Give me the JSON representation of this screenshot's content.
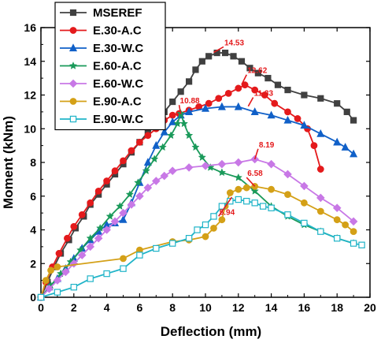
{
  "colors": {
    "axis": "#000000",
    "annotation": "#e41a1c"
  },
  "chart_data": {
    "type": "line",
    "title": "",
    "xlabel": "Deflection (mm)",
    "ylabel": "Moment (kNm)",
    "xlim": [
      0,
      20
    ],
    "ylim": [
      0,
      16
    ],
    "x_ticks": [
      "0",
      "2",
      "4",
      "6",
      "8",
      "10",
      "12",
      "14",
      "16",
      "18",
      "20"
    ],
    "y_ticks": [
      "0",
      "2",
      "4",
      "6",
      "8",
      "10",
      "12",
      "14",
      "16"
    ],
    "grid": false,
    "legend_position": "top-left",
    "series": [
      {
        "name": "MSEREF",
        "color": "#404040",
        "marker": "square",
        "points": [
          [
            0,
            0
          ],
          [
            0.4,
            0.9
          ],
          [
            0.8,
            1.8
          ],
          [
            1.2,
            2.6
          ],
          [
            1.7,
            3.4
          ],
          [
            2.1,
            4.1
          ],
          [
            2.6,
            4.8
          ],
          [
            3.0,
            5.5
          ],
          [
            3.5,
            6.1
          ],
          [
            4.0,
            6.7
          ],
          [
            4.5,
            7.3
          ],
          [
            5.0,
            7.9
          ],
          [
            5.5,
            8.6
          ],
          [
            6.0,
            9.2
          ],
          [
            6.5,
            9.8
          ],
          [
            7.0,
            10.4
          ],
          [
            7.5,
            11.0
          ],
          [
            8.0,
            11.6
          ],
          [
            8.5,
            12.2
          ],
          [
            9.0,
            12.8
          ],
          [
            9.4,
            13.5
          ],
          [
            9.8,
            14.0
          ],
          [
            10.2,
            14.3
          ],
          [
            10.7,
            14.5
          ],
          [
            11.2,
            14.5
          ],
          [
            11.7,
            14.3
          ],
          [
            12.2,
            14.0
          ],
          [
            12.7,
            13.6
          ],
          [
            13.2,
            13.3
          ],
          [
            13.8,
            13.0
          ],
          [
            14.4,
            12.6
          ],
          [
            15.0,
            12.3
          ],
          [
            16.0,
            12.0
          ],
          [
            17.0,
            11.8
          ],
          [
            18.0,
            11.5
          ],
          [
            18.6,
            11.0
          ],
          [
            19.0,
            10.5
          ]
        ]
      },
      {
        "name": "E.30-A.C",
        "color": "#e41a1c",
        "marker": "circle",
        "points": [
          [
            0,
            0
          ],
          [
            0.3,
            0.9
          ],
          [
            0.7,
            1.8
          ],
          [
            1.1,
            2.6
          ],
          [
            1.6,
            3.5
          ],
          [
            2.0,
            4.2
          ],
          [
            2.5,
            4.9
          ],
          [
            3.0,
            5.6
          ],
          [
            3.5,
            6.3
          ],
          [
            4.0,
            6.9
          ],
          [
            4.5,
            7.5
          ],
          [
            5.0,
            8.1
          ],
          [
            5.5,
            8.7
          ],
          [
            6.0,
            9.2
          ],
          [
            6.5,
            9.6
          ],
          [
            7.0,
            10.0
          ],
          [
            7.5,
            10.5
          ],
          [
            8.0,
            10.8
          ],
          [
            8.4,
            10.9
          ],
          [
            9.0,
            11.1
          ],
          [
            9.6,
            11.3
          ],
          [
            10.2,
            11.5
          ],
          [
            10.8,
            11.8
          ],
          [
            11.4,
            12.1
          ],
          [
            12.0,
            12.4
          ],
          [
            12.4,
            12.6
          ],
          [
            13.0,
            12.3
          ],
          [
            13.6,
            12.0
          ],
          [
            14.2,
            11.5
          ],
          [
            15.0,
            11.0
          ],
          [
            15.6,
            10.6
          ],
          [
            16.2,
            10.0
          ],
          [
            16.6,
            9.0
          ],
          [
            17.0,
            7.6
          ]
        ]
      },
      {
        "name": "E.30-W.C",
        "color": "#1060c8",
        "marker": "triangle",
        "points": [
          [
            0,
            0
          ],
          [
            0.5,
            0.6
          ],
          [
            1.0,
            1.1
          ],
          [
            1.5,
            1.7
          ],
          [
            2.0,
            2.3
          ],
          [
            2.5,
            2.9
          ],
          [
            3.0,
            3.4
          ],
          [
            3.5,
            3.9
          ],
          [
            4.0,
            4.3
          ],
          [
            4.5,
            4.4
          ],
          [
            5.0,
            4.6
          ],
          [
            5.5,
            5.6
          ],
          [
            6.0,
            6.8
          ],
          [
            6.5,
            8.0
          ],
          [
            7.0,
            9.0
          ],
          [
            7.5,
            9.8
          ],
          [
            8.0,
            10.4
          ],
          [
            8.5,
            10.8
          ],
          [
            9.0,
            11.0
          ],
          [
            10.0,
            11.2
          ],
          [
            11.0,
            11.3
          ],
          [
            12.0,
            11.3
          ],
          [
            13.0,
            11.0
          ],
          [
            14.0,
            10.8
          ],
          [
            15.0,
            10.5
          ],
          [
            16.0,
            10.2
          ],
          [
            17.0,
            9.7
          ],
          [
            18.0,
            9.2
          ],
          [
            18.5,
            8.9
          ],
          [
            19.0,
            8.5
          ]
        ]
      },
      {
        "name": "E.60-A.C",
        "color": "#1a9a5a",
        "marker": "star",
        "points": [
          [
            0,
            0
          ],
          [
            0.6,
            0.7
          ],
          [
            1.2,
            1.4
          ],
          [
            1.8,
            2.1
          ],
          [
            2.4,
            2.8
          ],
          [
            3.0,
            3.5
          ],
          [
            3.6,
            4.1
          ],
          [
            4.2,
            4.8
          ],
          [
            4.8,
            5.4
          ],
          [
            5.4,
            6.1
          ],
          [
            5.9,
            6.8
          ],
          [
            6.4,
            7.5
          ],
          [
            6.9,
            8.2
          ],
          [
            7.4,
            8.9
          ],
          [
            7.9,
            9.6
          ],
          [
            8.3,
            10.3
          ],
          [
            8.5,
            10.9
          ],
          [
            8.7,
            10.3
          ],
          [
            9.0,
            9.6
          ],
          [
            9.4,
            8.9
          ],
          [
            9.8,
            8.3
          ],
          [
            10.3,
            7.7
          ],
          [
            11.0,
            7.4
          ],
          [
            12.0,
            7.1
          ],
          [
            13.0,
            6.3
          ],
          [
            14.0,
            5.4
          ],
          [
            15.0,
            4.8
          ],
          [
            16.0,
            4.3
          ],
          [
            17.0,
            3.9
          ],
          [
            18.0,
            3.5
          ],
          [
            19.0,
            3.2
          ]
        ]
      },
      {
        "name": "E.60-W.C",
        "color": "#c878e6",
        "marker": "diamond",
        "points": [
          [
            0,
            0
          ],
          [
            0.5,
            0.5
          ],
          [
            1.0,
            1.0
          ],
          [
            1.5,
            1.5
          ],
          [
            2.0,
            2.0
          ],
          [
            2.5,
            2.5
          ],
          [
            3.0,
            3.0
          ],
          [
            3.5,
            3.5
          ],
          [
            4.0,
            4.0
          ],
          [
            4.5,
            4.5
          ],
          [
            5.0,
            5.0
          ],
          [
            5.5,
            5.5
          ],
          [
            6.0,
            6.0
          ],
          [
            6.5,
            6.5
          ],
          [
            7.0,
            6.9
          ],
          [
            7.5,
            7.2
          ],
          [
            8.0,
            7.5
          ],
          [
            9.0,
            7.7
          ],
          [
            10.0,
            7.8
          ],
          [
            11.0,
            7.9
          ],
          [
            12.0,
            8.0
          ],
          [
            13.0,
            8.19
          ],
          [
            14.0,
            7.9
          ],
          [
            15.0,
            7.3
          ],
          [
            16.0,
            6.6
          ],
          [
            17.0,
            5.9
          ],
          [
            18.0,
            5.3
          ],
          [
            19.0,
            4.5
          ]
        ]
      },
      {
        "name": "E.90-A.C",
        "color": "#d4a017",
        "marker": "circle",
        "points": [
          [
            0,
            0
          ],
          [
            0.3,
            1.0
          ],
          [
            0.6,
            1.6
          ],
          [
            1.0,
            1.8
          ],
          [
            5.0,
            2.3
          ],
          [
            6.0,
            2.8
          ],
          [
            8.0,
            3.3
          ],
          [
            9.0,
            3.4
          ],
          [
            10.0,
            3.6
          ],
          [
            10.5,
            4.1
          ],
          [
            11.0,
            4.6
          ],
          [
            11.2,
            5.4
          ],
          [
            11.5,
            6.2
          ],
          [
            12.0,
            6.4
          ],
          [
            12.5,
            6.5
          ],
          [
            13.0,
            6.58
          ],
          [
            14.0,
            6.4
          ],
          [
            15.0,
            6.1
          ],
          [
            16.0,
            5.6
          ],
          [
            17.0,
            5.1
          ],
          [
            18.0,
            4.6
          ],
          [
            18.5,
            4.3
          ],
          [
            19.0,
            3.9
          ]
        ]
      },
      {
        "name": "E.90-W.C",
        "color": "#20b4c8",
        "marker": "square-open",
        "points": [
          [
            0,
            0
          ],
          [
            1.0,
            0.3
          ],
          [
            2.0,
            0.6
          ],
          [
            3.0,
            1.1
          ],
          [
            4.0,
            1.4
          ],
          [
            5.0,
            1.7
          ],
          [
            6.0,
            2.5
          ],
          [
            7.0,
            2.9
          ],
          [
            8.0,
            3.2
          ],
          [
            9.0,
            3.5
          ],
          [
            9.5,
            4.0
          ],
          [
            10.0,
            4.3
          ],
          [
            10.5,
            4.8
          ],
          [
            11.0,
            5.4
          ],
          [
            11.5,
            5.7
          ],
          [
            12.0,
            5.8
          ],
          [
            12.5,
            5.7
          ],
          [
            13.0,
            5.6
          ],
          [
            13.5,
            5.4
          ],
          [
            14.0,
            5.3
          ],
          [
            15.0,
            4.9
          ],
          [
            16.0,
            4.4
          ],
          [
            17.0,
            3.9
          ],
          [
            18.0,
            3.5
          ],
          [
            19.0,
            3.2
          ],
          [
            19.5,
            3.1
          ]
        ]
      }
    ],
    "annotations": [
      {
        "text": "14.53",
        "x": 10.5,
        "y": 14.53,
        "tx": 11.1,
        "ty": 14.95
      },
      {
        "text": "12.62",
        "x": 12.2,
        "y": 12.62,
        "tx": 12.5,
        "ty": 13.3
      },
      {
        "text": "11.33",
        "x": 12.6,
        "y": 11.33,
        "tx": 12.9,
        "ty": 11.95
      },
      {
        "text": "10.88",
        "x": 8.5,
        "y": 10.88,
        "tx": 8.4,
        "ty": 11.5
      },
      {
        "text": "8.19",
        "x": 13.0,
        "y": 8.19,
        "tx": 13.2,
        "ty": 8.9
      },
      {
        "text": "6.58",
        "x": 13.0,
        "y": 6.58,
        "tx": 12.5,
        "ty": 7.2
      },
      {
        "text": "5.94",
        "x": 11.6,
        "y": 5.94,
        "tx": 10.8,
        "ty": 4.9
      }
    ]
  }
}
